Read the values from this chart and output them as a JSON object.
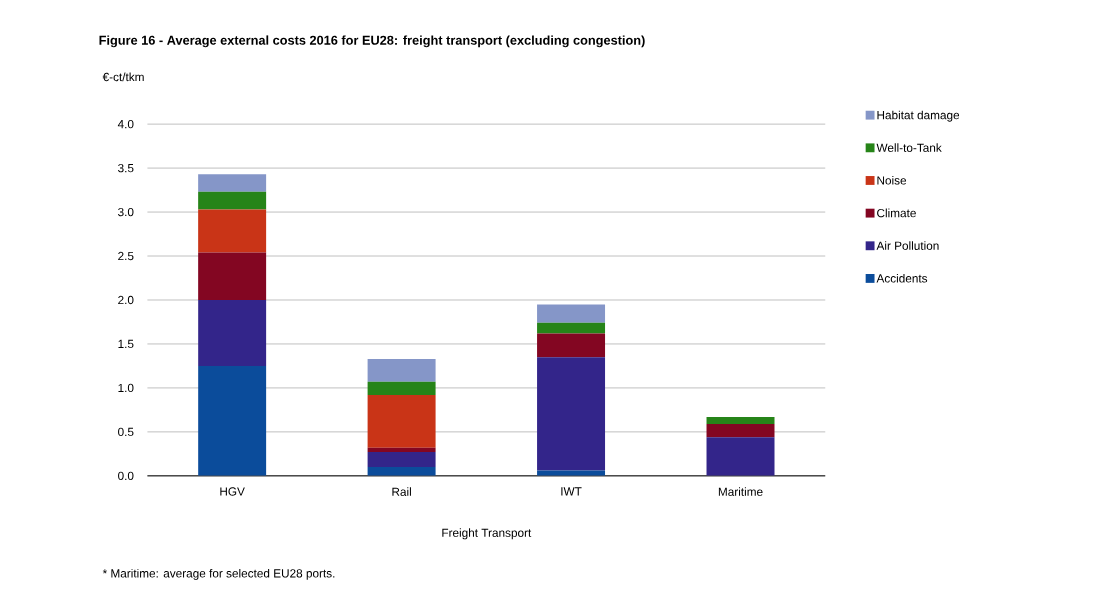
{
  "chart_data": {
    "type": "bar",
    "stacked": true,
    "title": "Figure 16 - Average external costs 2016 for EU28: freight transport (excluding congestion)",
    "ylabel": "€-ct/tkm",
    "xlabel": "Freight Transport",
    "categories": [
      "HGV",
      "Rail",
      "IWT",
      "Maritime"
    ],
    "series": [
      {
        "name": "Accidents",
        "color": "#0b4c9b",
        "values": [
          1.25,
          0.1,
          0.06,
          0
        ]
      },
      {
        "name": "Air Pollution",
        "color": "#33258a",
        "values": [
          0.75,
          0.17,
          1.29,
          0.44
        ]
      },
      {
        "name": "Climate",
        "color": "#830622",
        "values": [
          0.54,
          0.05,
          0.27,
          0.15
        ]
      },
      {
        "name": "Noise",
        "color": "#c93417",
        "values": [
          0.49,
          0.6,
          0,
          0
        ]
      },
      {
        "name": "Well-to-Tank",
        "color": "#268418",
        "values": [
          0.2,
          0.15,
          0.12,
          0.08
        ]
      },
      {
        "name": "Habitat damage",
        "color": "#8596c8",
        "values": [
          0.2,
          0.26,
          0.21,
          0
        ]
      }
    ],
    "ylim": [
      0,
      4
    ],
    "yticks": [
      {
        "value": 0,
        "label": "0.0"
      },
      {
        "value": 0.5,
        "label": "0.5"
      },
      {
        "value": 1,
        "label": "1.0"
      },
      {
        "value": 1.5,
        "label": "1.5"
      },
      {
        "value": 2,
        "label": "2.0"
      },
      {
        "value": 2.5,
        "label": "2.5"
      },
      {
        "value": 3,
        "label": "3.0"
      },
      {
        "value": 3.5,
        "label": "3.5"
      },
      {
        "value": 4,
        "label": "4.0"
      }
    ],
    "grid": "y",
    "legend": "right",
    "annotations": [
      "*   Maritime: average for selected EU28 ports."
    ]
  }
}
